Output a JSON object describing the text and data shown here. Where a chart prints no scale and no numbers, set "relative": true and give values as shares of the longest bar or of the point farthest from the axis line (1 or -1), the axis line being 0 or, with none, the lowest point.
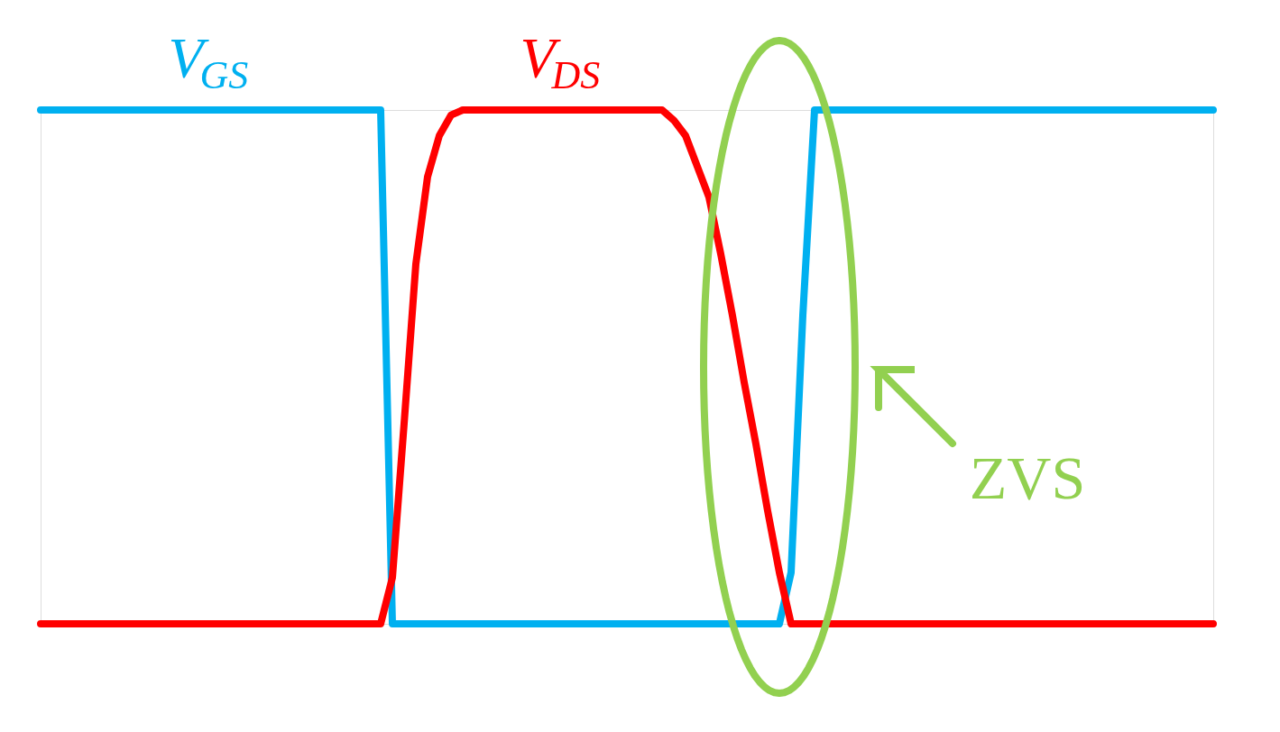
{
  "chart_data": {
    "type": "line",
    "relative": true,
    "categories": [
      null,
      null,
      null,
      null,
      null,
      null,
      null,
      null,
      null,
      null,
      null,
      null,
      null,
      null,
      null,
      null,
      null,
      null,
      null,
      null,
      null,
      null,
      null,
      null,
      null,
      null,
      null,
      null,
      null,
      null,
      null,
      null,
      null,
      null,
      null,
      null,
      null,
      null,
      null,
      null,
      null,
      null,
      null,
      null,
      null,
      null,
      null,
      null,
      null,
      null,
      null,
      null,
      null,
      null,
      null,
      null,
      null,
      null,
      null,
      null,
      null,
      null,
      null,
      null,
      null,
      null,
      null,
      null,
      null,
      null,
      null,
      null,
      null,
      null,
      null,
      null,
      null,
      null,
      null,
      null,
      null,
      null,
      null,
      null,
      null,
      null,
      null,
      null,
      null,
      null,
      null,
      null,
      null,
      null,
      null,
      null,
      null,
      null,
      null,
      null,
      null
    ],
    "series": [
      {
        "name": "V$_{GS}$",
        "color": "#00b0f0",
        "values": [
          1,
          1,
          1,
          1,
          1,
          1,
          1,
          1,
          1,
          1,
          1,
          1,
          1,
          1,
          1,
          1,
          1,
          1,
          1,
          1,
          1,
          1,
          1,
          1,
          1,
          1,
          1,
          1,
          1,
          1,
          0,
          0,
          0,
          0,
          0,
          0,
          0,
          0,
          0,
          0,
          0,
          0,
          0,
          0,
          0,
          0,
          0,
          0,
          0,
          0,
          0,
          0,
          0,
          0,
          0,
          0,
          0,
          0,
          0,
          0,
          0,
          0,
          0,
          0,
          0.1,
          0.6,
          1,
          1,
          1,
          1,
          1,
          1,
          1,
          1,
          1,
          1,
          1,
          1,
          1,
          1,
          1,
          1,
          1,
          1,
          1,
          1,
          1,
          1,
          1,
          1,
          1,
          1,
          1,
          1,
          1,
          1,
          1,
          1,
          1,
          1,
          1
        ]
      },
      {
        "name": "V$_{DS}$",
        "color": "#ff0000",
        "values": [
          0,
          0,
          0,
          0,
          0,
          0,
          0,
          0,
          0,
          0,
          0,
          0,
          0,
          0,
          0,
          0,
          0,
          0,
          0,
          0,
          0,
          0,
          0,
          0,
          0,
          0,
          0,
          0,
          0,
          0,
          0.09,
          0.39,
          0.7,
          0.87,
          0.95,
          0.99,
          1,
          1,
          1,
          1,
          1,
          1,
          1,
          1,
          1,
          1,
          1,
          1,
          1,
          1,
          1,
          1,
          1,
          1,
          0.98,
          0.95,
          0.89,
          0.83,
          0.72,
          0.6,
          0.47,
          0.35,
          0.22,
          0.1,
          0,
          0,
          0,
          0,
          0,
          0,
          0,
          0,
          0,
          0,
          0,
          0,
          0,
          0,
          0,
          0,
          0,
          0,
          0,
          0,
          0,
          0,
          0,
          0,
          0,
          0,
          0,
          0,
          0,
          0,
          0,
          0,
          0,
          0,
          0,
          0,
          0
        ]
      }
    ],
    "annotations": [
      "ZVS"
    ]
  }
}
